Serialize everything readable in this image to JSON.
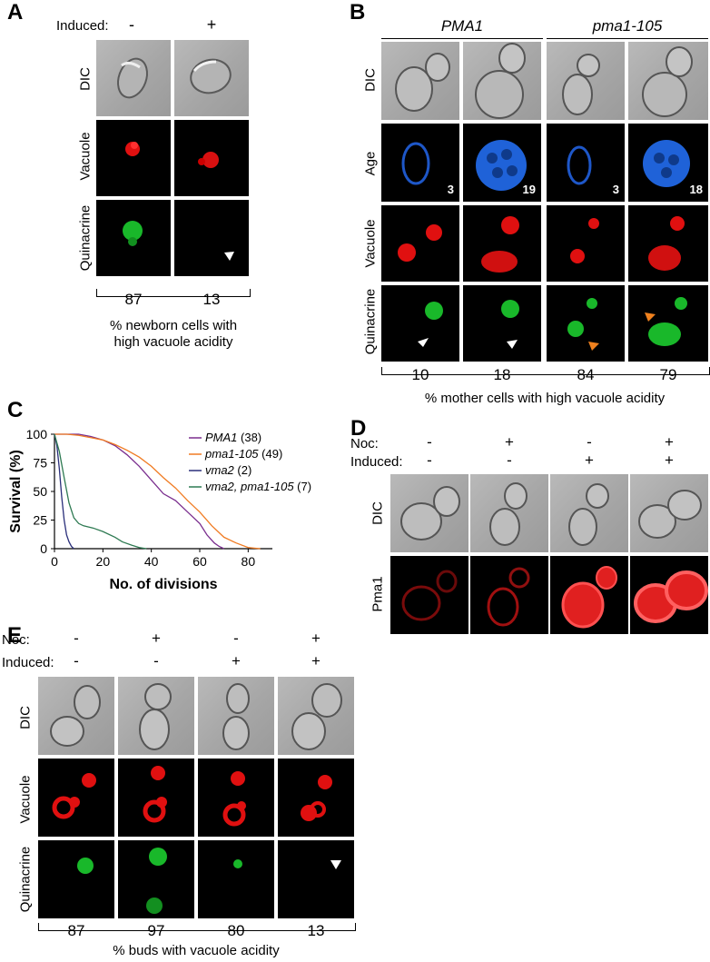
{
  "panelA": {
    "letter": "A",
    "induced_label": "Induced:",
    "induced_values": [
      "-",
      "+"
    ],
    "row_labels": [
      "DIC",
      "Vacuole",
      "Quinacrine"
    ],
    "percentages": [
      "87",
      "13"
    ],
    "caption_line1": "% newborn cells with",
    "caption_line2": "high vacuole acidity"
  },
  "panelB": {
    "letter": "B",
    "group1": "PMA1",
    "group2": "pma1-105",
    "row_labels": [
      "DIC",
      "Age",
      "Vacuole",
      "Quinacrine"
    ],
    "ages": [
      "3",
      "19",
      "3",
      "18"
    ],
    "percentages": [
      "10",
      "18",
      "84",
      "79"
    ],
    "caption": "% mother cells with high vacuole acidity"
  },
  "panelC": {
    "letter": "C"
  },
  "chart_data": {
    "type": "line",
    "title": "",
    "xlabel": "No. of divisions",
    "ylabel": "Survival (%)",
    "xlim": [
      0,
      90
    ],
    "ylim": [
      0,
      100
    ],
    "xticks": [
      "0",
      "20",
      "40",
      "60",
      "80"
    ],
    "yticks": [
      "0",
      "25",
      "50",
      "75",
      "100"
    ],
    "legend_position": "top-right",
    "series": [
      {
        "name": "PMA1",
        "count_label": "(38)",
        "color": "#7a2e8e",
        "x": [
          0,
          5,
          10,
          15,
          20,
          25,
          30,
          35,
          40,
          45,
          50,
          55,
          60,
          63,
          66,
          68,
          70
        ],
        "y": [
          100,
          100,
          100,
          98,
          95,
          90,
          82,
          72,
          60,
          48,
          42,
          32,
          22,
          12,
          5,
          2,
          0
        ]
      },
      {
        "name": "pma1-105",
        "count_label": "(49)",
        "color": "#f07b22",
        "x": [
          0,
          5,
          10,
          15,
          20,
          25,
          30,
          35,
          40,
          45,
          50,
          55,
          60,
          65,
          70,
          75,
          80,
          85
        ],
        "y": [
          100,
          100,
          99,
          97,
          95,
          91,
          86,
          80,
          72,
          62,
          53,
          42,
          32,
          20,
          10,
          5,
          1,
          0
        ]
      },
      {
        "name": "vma2",
        "count_label": "(2)",
        "color": "#2a2f7a",
        "x": [
          0,
          1,
          2,
          3,
          4,
          5,
          6,
          7,
          8
        ],
        "y": [
          100,
          90,
          70,
          45,
          25,
          12,
          6,
          2,
          0
        ]
      },
      {
        "name": "vma2, pma1-105",
        "count_label": "(7)",
        "color": "#2e7a52",
        "x": [
          0,
          2,
          4,
          6,
          8,
          10,
          12,
          16,
          20,
          25,
          28,
          32,
          35,
          38
        ],
        "y": [
          100,
          85,
          62,
          40,
          27,
          22,
          20,
          18,
          15,
          10,
          6,
          3,
          1,
          0
        ]
      }
    ]
  },
  "panelD": {
    "letter": "D",
    "noc_label": "Noc:",
    "induced_label": "Induced:",
    "noc_values": [
      "-",
      "+",
      "-",
      "+"
    ],
    "induced_values": [
      "-",
      "-",
      "+",
      "+"
    ],
    "row_labels": [
      "DIC",
      "Pma1"
    ]
  },
  "panelE": {
    "letter": "E",
    "noc_label": "Noc:",
    "induced_label": "Induced:",
    "noc_values": [
      "-",
      "+",
      "-",
      "+"
    ],
    "induced_values": [
      "-",
      "-",
      "+",
      "+"
    ],
    "row_labels": [
      "DIC",
      "Vacuole",
      "Quinacrine"
    ],
    "percentages": [
      "87",
      "97",
      "80",
      "13"
    ],
    "caption": "% buds with vacuole acidity"
  }
}
